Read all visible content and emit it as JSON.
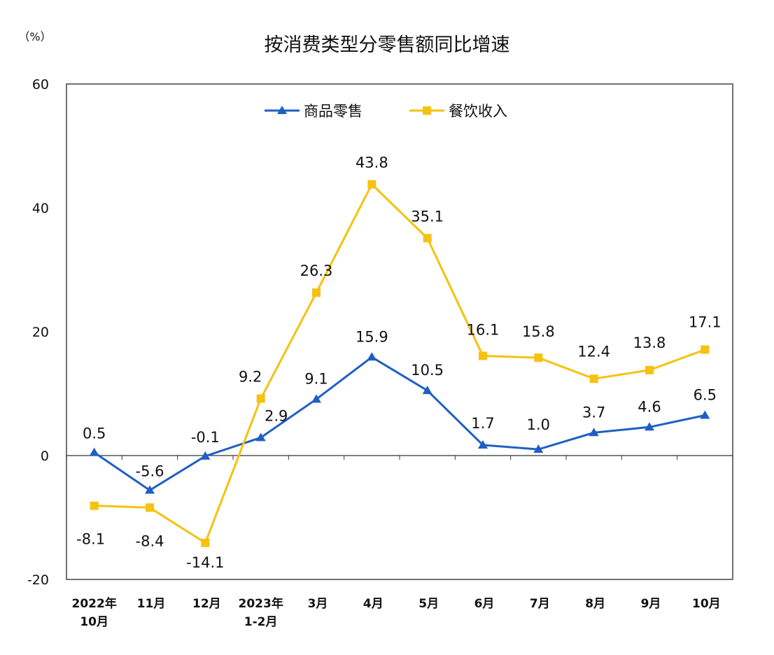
{
  "chart_data": {
    "type": "line",
    "title": "按消费类型分零售额同比增速",
    "ylabel": "（%）",
    "ylim": [
      -20,
      60
    ],
    "yticks": [
      -20,
      0,
      20,
      40,
      60
    ],
    "grid": false,
    "legend_position": "top-center",
    "categories": [
      [
        "2022年",
        "10月"
      ],
      [
        "11月"
      ],
      [
        "12月"
      ],
      [
        "2023年",
        "1-2月"
      ],
      [
        "3月"
      ],
      [
        "4月"
      ],
      [
        "5月"
      ],
      [
        "6月"
      ],
      [
        "7月"
      ],
      [
        "8月"
      ],
      [
        "9月"
      ],
      [
        "10月"
      ]
    ],
    "series": [
      {
        "name": "商品零售",
        "color": "#1f5fc4",
        "marker": "triangle",
        "values": [
          0.5,
          -5.6,
          -0.1,
          2.9,
          9.1,
          15.9,
          10.5,
          1.7,
          1.0,
          3.7,
          4.6,
          6.5
        ],
        "labels": [
          "0.5",
          "-5.6",
          "-0.1",
          "2.9",
          "9.1",
          "15.9",
          "10.5",
          "1.7",
          "1.0",
          "3.7",
          "4.6",
          "6.5"
        ]
      },
      {
        "name": "餐饮收入",
        "color": "#f5c211",
        "marker": "square",
        "values": [
          -8.1,
          -8.4,
          -14.1,
          9.2,
          26.3,
          43.8,
          35.1,
          16.1,
          15.8,
          12.4,
          13.8,
          17.1
        ],
        "labels": [
          "-8.1",
          "-8.4",
          "-14.1",
          "9.2",
          "26.3",
          "43.8",
          "35.1",
          "16.1",
          "15.8",
          "12.4",
          "13.8",
          "17.1"
        ]
      }
    ]
  }
}
